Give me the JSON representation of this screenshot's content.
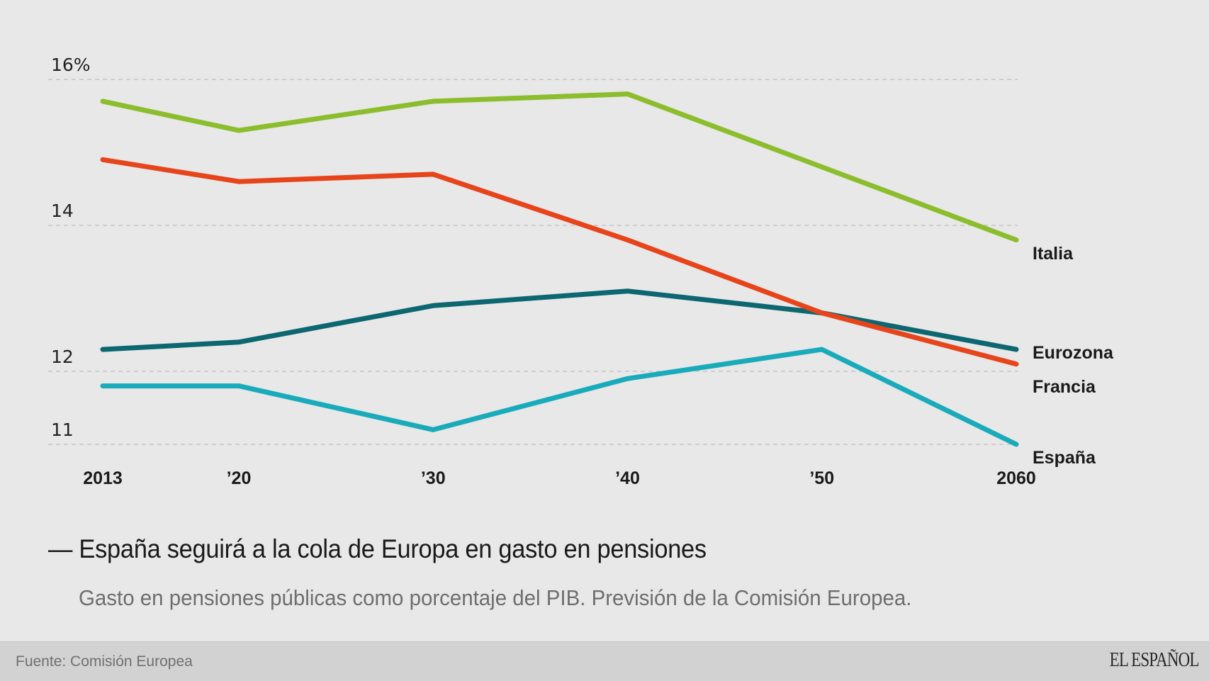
{
  "chart_data": {
    "type": "line",
    "title": "España seguirá a la cola de Europa en gasto en pensiones",
    "title_prefix": "—",
    "subtitle": "Gasto en pensiones públicas como porcentaje del PIB. Previsión de la Comisión Europea.",
    "xlabel": "",
    "ylabel": "",
    "x": [
      2013,
      2020,
      2030,
      2040,
      2050,
      2060
    ],
    "x_tick_labels": [
      "2013",
      "’20",
      "’30",
      "’40",
      "’50",
      "2060"
    ],
    "y_ticks": [
      16,
      14,
      12,
      11
    ],
    "y_tick_labels": [
      "16%",
      "14",
      "12",
      "11"
    ],
    "ylim": [
      11,
      16
    ],
    "grid": true,
    "legend": "direct-labels-right",
    "series": [
      {
        "name": "Italia",
        "color": "#8cbd2d",
        "values": [
          15.7,
          15.3,
          15.7,
          15.8,
          14.8,
          13.8
        ]
      },
      {
        "name": "Eurozona",
        "color": "#0c6770",
        "values": [
          12.3,
          12.4,
          12.9,
          13.1,
          12.8,
          12.3
        ]
      },
      {
        "name": "Francia",
        "color": "#e8441b",
        "values": [
          14.9,
          14.6,
          14.7,
          13.8,
          12.8,
          12.1
        ]
      },
      {
        "name": "España",
        "color": "#1aabbb",
        "values": [
          11.8,
          11.8,
          11.2,
          11.9,
          12.3,
          11.0
        ]
      }
    ]
  },
  "footer": {
    "source": "Fuente: Comisión Europea",
    "logo": "EL ESPAÑOL"
  }
}
